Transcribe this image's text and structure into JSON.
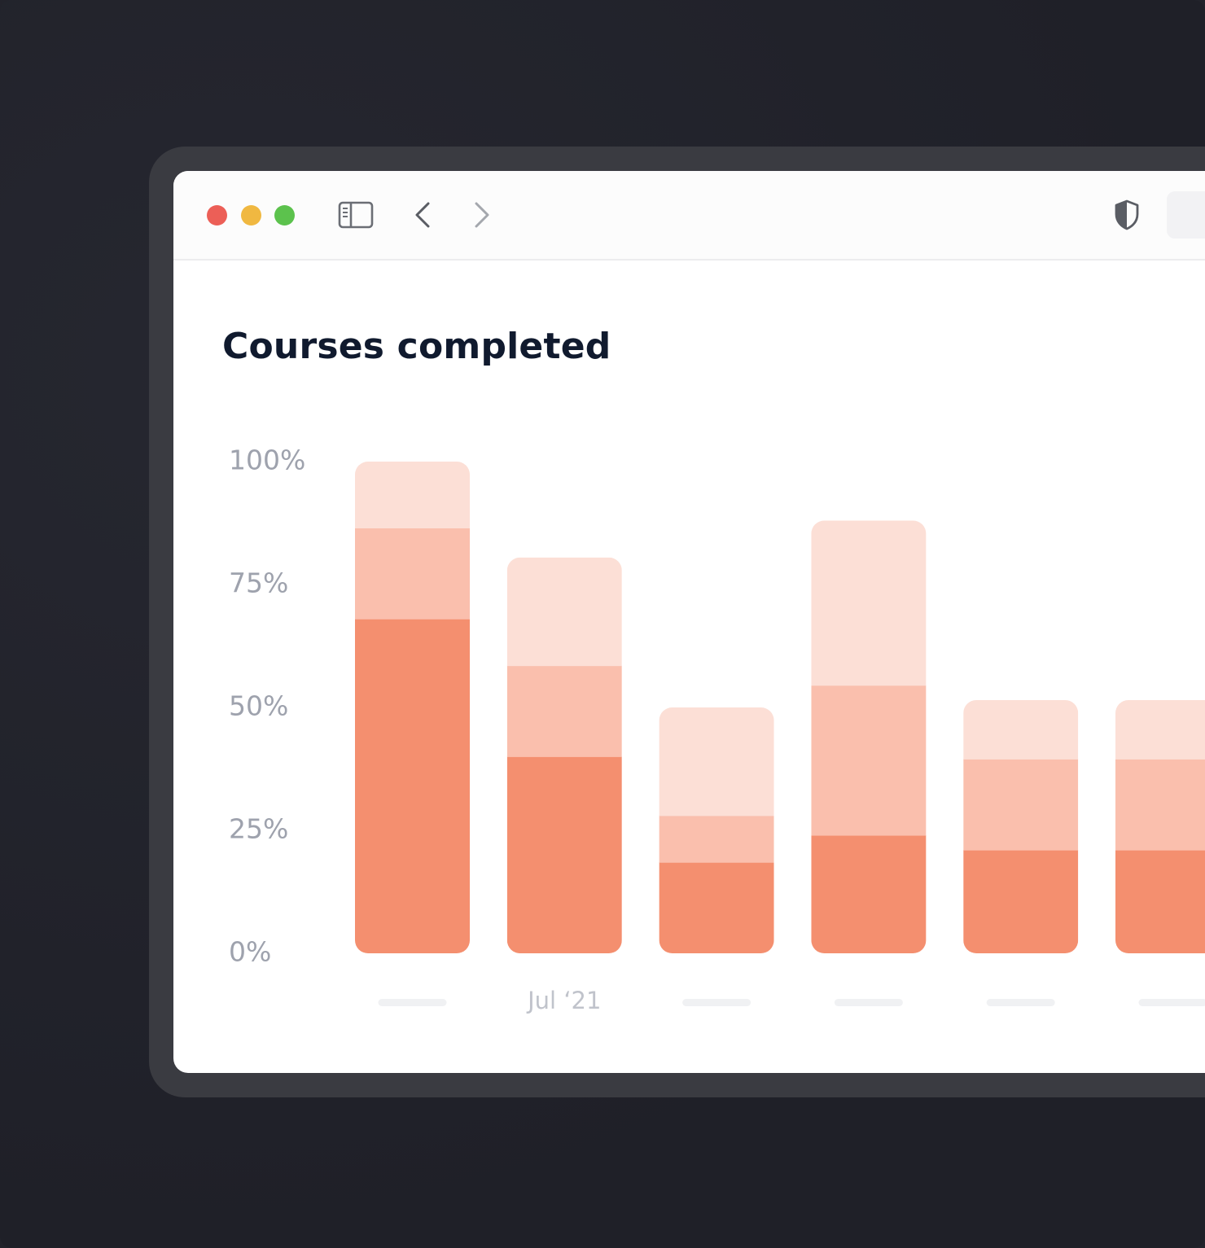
{
  "chart_data": {
    "type": "bar",
    "stacked": true,
    "title": "Courses completed",
    "y_ticks": [
      "0%",
      "25%",
      "50%",
      "75%",
      "100%"
    ],
    "ylim": [
      0,
      100
    ],
    "categories": [
      "",
      "Jul ‘21",
      "",
      "",
      "",
      ""
    ],
    "series": [
      {
        "color": "#f48f6f",
        "values": [
          68,
          40,
          18.5,
          24,
          21,
          21
        ]
      },
      {
        "color": "#fabfad",
        "values": [
          18.5,
          18.5,
          9.5,
          30.5,
          18.5,
          18.5
        ]
      },
      {
        "color": "#fcdfd6",
        "values": [
          13.5,
          22,
          22,
          33.5,
          12,
          12
        ]
      }
    ],
    "grid": false,
    "legend": "none"
  },
  "window": {
    "traffic_lights": [
      "close",
      "minimize",
      "zoom"
    ]
  }
}
